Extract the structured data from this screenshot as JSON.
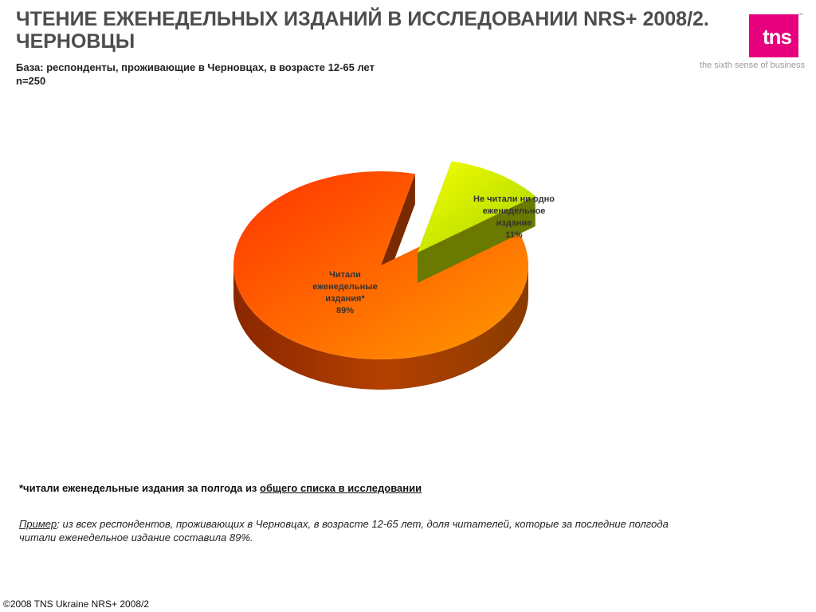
{
  "title": {
    "line1": "ЧТЕНИЕ ЕЖЕНЕДЕЛЬНЫХ ИЗДАНИЙ В ИССЛЕДОВАНИИ NRS+ 2008/2.",
    "line2": "ЧЕРНОВЦЫ"
  },
  "logo": {
    "text": "tns",
    "tagline": "the sixth sense of business",
    "tm": "™",
    "color": "#e6007e"
  },
  "base": {
    "line1": "База: респонденты, проживающие в Черновцах, в возрасте 12-65 лет",
    "line2": "n=250"
  },
  "chart_data": {
    "type": "pie",
    "title": "",
    "slices": [
      {
        "label_lines": [
          "Читали",
          "еженедельные",
          "издания*",
          "89%"
        ],
        "value": 89,
        "color": "#ff4d00"
      },
      {
        "label_lines": [
          "Не читали ни одно",
          "еженедельное",
          "издание",
          "11%"
        ],
        "value": 11,
        "color": "#c8e000"
      }
    ]
  },
  "footnote": {
    "text": "*читали еженедельные издания за полгода из ",
    "link": "общего списка в исследовании"
  },
  "example": {
    "label": "Пример",
    "text": ":  из всех респондентов, проживающих в Черновцах, в возрасте 12-65 лет, доля читателей, которые за последние полгода читали еженедельное издание составила  89%."
  },
  "copyright": "©2008 TNS Ukraine  NRS+ 2008/2"
}
